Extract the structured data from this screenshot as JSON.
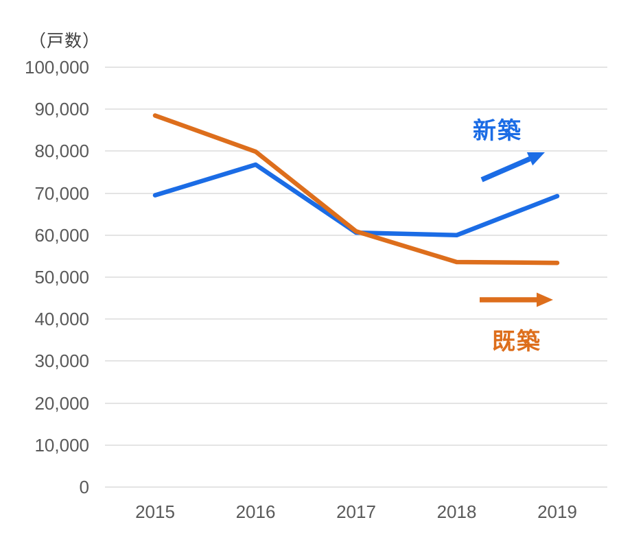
{
  "chart_data": {
    "type": "line",
    "title": "",
    "y_axis_unit_label": "（戸数）",
    "xlabel": "",
    "ylabel": "戸数",
    "categories": [
      "2015",
      "2016",
      "2017",
      "2018",
      "2019"
    ],
    "series": [
      {
        "name": "新築",
        "color": "#1b6ce5",
        "values": [
          69500,
          76800,
          60600,
          60000,
          69300
        ]
      },
      {
        "name": "既築",
        "color": "#dd6e1c",
        "values": [
          88500,
          79900,
          60900,
          53600,
          53400
        ]
      }
    ],
    "ylim": [
      0,
      100000
    ],
    "ytick_step": 10000,
    "ytick_labels": [
      "0",
      "10,000",
      "20,000",
      "30,000",
      "40,000",
      "50,000",
      "60,000",
      "70,000",
      "80,000",
      "90,000",
      "100,000"
    ],
    "grid": "horizontal",
    "legend": "inline-arrow-annotations",
    "annotations": [
      {
        "text": "新築",
        "color": "#1b6ce5",
        "arrow_direction": "up-right"
      },
      {
        "text": "既築",
        "color": "#dd6e1c",
        "arrow_direction": "right"
      }
    ]
  }
}
